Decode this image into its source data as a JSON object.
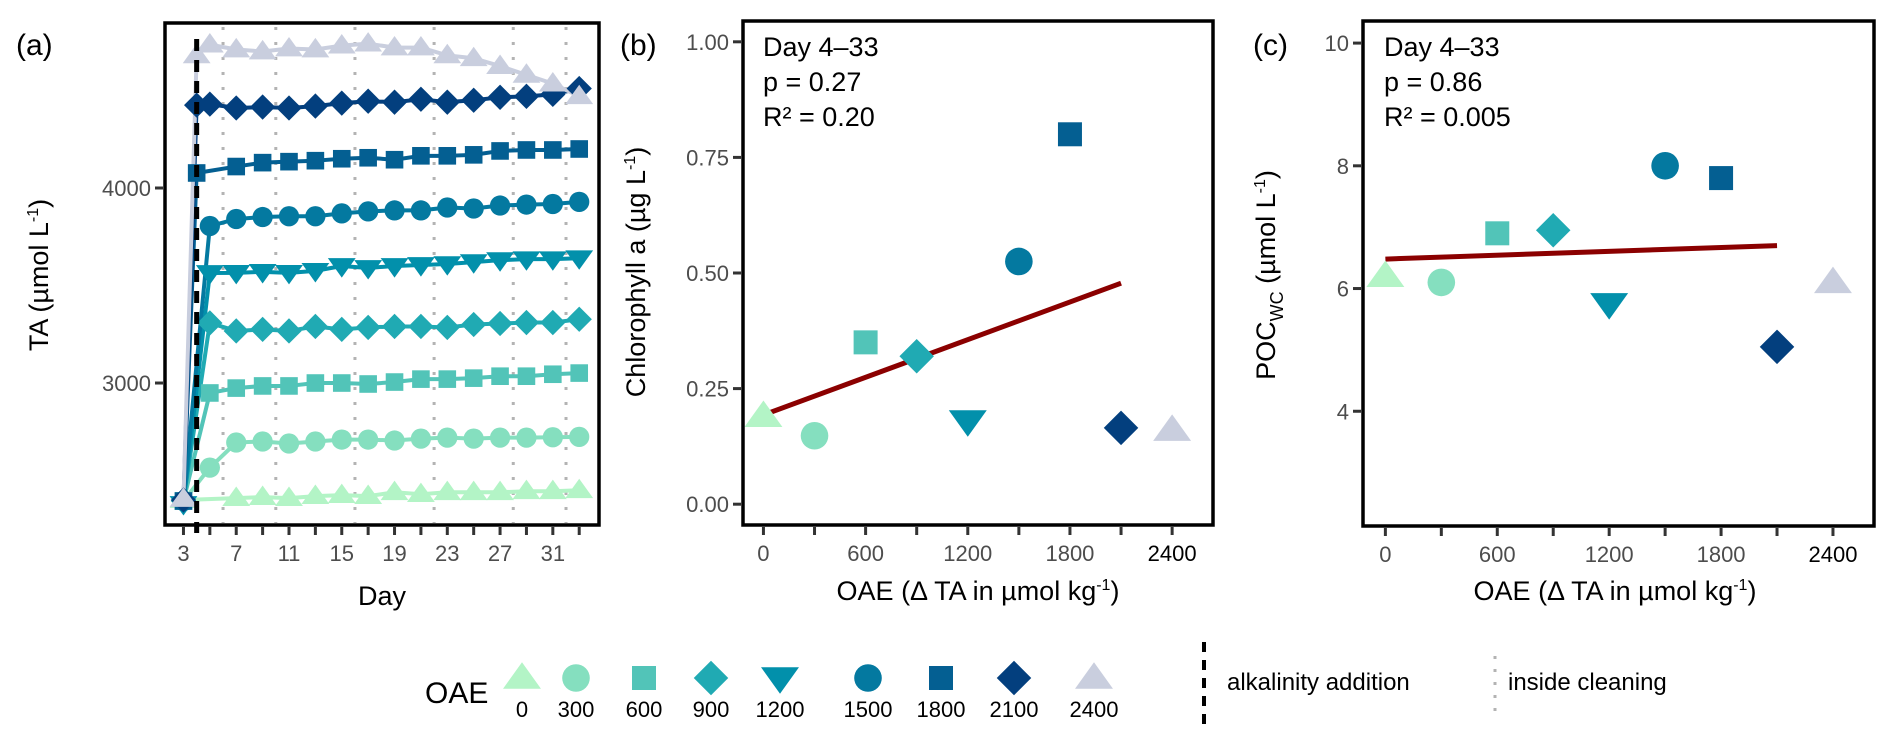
{
  "colors": {
    "0": "#b3f4c6",
    "300": "#85dfbf",
    "600": "#52c4b8",
    "900": "#20aab3",
    "1200": "#0290ab",
    "1500": "#0479a0",
    "1800": "#045f92",
    "2100": "#033f7e",
    "2400": "#c9cede",
    "regression": "#8b0000",
    "cleaning": "#b3b3b3",
    "addition": "#000000"
  },
  "shapes": {
    "0": "triangle",
    "300": "circle",
    "600": "square",
    "900": "diamond",
    "1200": "triangle-down",
    "1500": "circle",
    "1800": "square",
    "2100": "diamond",
    "2400": "triangle"
  },
  "legend": {
    "title": "OAE",
    "items": [
      "0",
      "300",
      "600",
      "900",
      "1200",
      "1500",
      "1800",
      "2100",
      "2400"
    ],
    "addition_label": "alkalinity addition",
    "cleaning_label": "inside cleaning"
  },
  "chart_data": [
    {
      "panel": "(a)",
      "type": "line",
      "title": "",
      "xlabel": "Day",
      "ylabel": "TA (µmol L-1)",
      "ylabel_main": "TA (µmol L",
      "ylabel_sup": "-1",
      "ylabel_end": ")",
      "xlim": [
        1.6,
        34.5
      ],
      "ylim": [
        2272,
        4846
      ],
      "xticks": [
        3,
        5,
        7,
        9,
        11,
        13,
        15,
        17,
        19,
        21,
        23,
        25,
        27,
        29,
        31,
        33
      ],
      "xtick_labels": [
        "3",
        "",
        "7",
        "",
        "11",
        "",
        "15",
        "",
        "19",
        "",
        "23",
        "",
        "27",
        "",
        "31",
        ""
      ],
      "yticks": [
        3000,
        4000
      ],
      "ytick_labels": [
        "3000",
        "4000"
      ],
      "alkalinity_addition_day": 4,
      "inside_cleaning_days": [
        6,
        10,
        16,
        22,
        28,
        32
      ],
      "series": [
        {
          "name": "0",
          "x": [
            3,
            7,
            9,
            11,
            13,
            15,
            17,
            19,
            21,
            23,
            25,
            27,
            29,
            31,
            33
          ],
          "values": [
            2400,
            2410,
            2415,
            2410,
            2420,
            2425,
            2420,
            2440,
            2430,
            2440,
            2440,
            2440,
            2445,
            2445,
            2450
          ]
        },
        {
          "name": "300",
          "x": [
            3,
            5,
            7,
            9,
            11,
            13,
            15,
            17,
            19,
            21,
            23,
            25,
            27,
            29,
            31,
            33
          ],
          "values": [
            2395,
            2566,
            2695,
            2700,
            2690,
            2700,
            2710,
            2710,
            2705,
            2715,
            2720,
            2715,
            2720,
            2720,
            2722,
            2724
          ]
        },
        {
          "name": "600",
          "x": [
            3,
            5,
            7,
            9,
            11,
            13,
            15,
            17,
            19,
            21,
            23,
            25,
            27,
            29,
            31,
            33
          ],
          "values": [
            2395,
            2949,
            2974,
            2985,
            2985,
            3000,
            3000,
            2995,
            3005,
            3020,
            3020,
            3025,
            3035,
            3035,
            3045,
            3051
          ]
        },
        {
          "name": "900",
          "x": [
            3,
            5,
            7,
            9,
            11,
            13,
            15,
            17,
            19,
            21,
            23,
            25,
            27,
            29,
            31,
            33
          ],
          "values": [
            2395,
            3308,
            3267,
            3275,
            3267,
            3290,
            3275,
            3285,
            3290,
            3290,
            3285,
            3300,
            3305,
            3310,
            3310,
            3327
          ]
        },
        {
          "name": "1200",
          "x": [
            3,
            5,
            7,
            9,
            11,
            13,
            15,
            17,
            19,
            21,
            23,
            25,
            27,
            29,
            31,
            33
          ],
          "values": [
            2380,
            3564,
            3565,
            3570,
            3565,
            3575,
            3600,
            3590,
            3600,
            3605,
            3610,
            3620,
            3630,
            3635,
            3635,
            3640
          ]
        },
        {
          "name": "1500",
          "x": [
            3,
            5,
            7,
            9,
            11,
            13,
            15,
            17,
            19,
            21,
            23,
            25,
            27,
            29,
            31,
            33
          ],
          "values": [
            2395,
            3805,
            3841,
            3851,
            3855,
            3855,
            3870,
            3880,
            3885,
            3885,
            3900,
            3895,
            3910,
            3915,
            3918,
            3929
          ]
        },
        {
          "name": "1800",
          "x": [
            3,
            4,
            7,
            9,
            11,
            13,
            15,
            17,
            19,
            21,
            23,
            25,
            27,
            29,
            31,
            33
          ],
          "values": [
            2395,
            4077,
            4110,
            4130,
            4135,
            4140,
            4150,
            4155,
            4145,
            4165,
            4165,
            4170,
            4190,
            4195,
            4195,
            4200
          ]
        },
        {
          "name": "2100",
          "x": [
            3,
            4,
            5,
            7,
            9,
            11,
            13,
            15,
            17,
            19,
            21,
            23,
            25,
            27,
            29,
            31,
            33
          ],
          "values": [
            2400,
            4425,
            4430,
            4410,
            4415,
            4410,
            4420,
            4435,
            4445,
            4440,
            4455,
            4440,
            4450,
            4465,
            4470,
            4480,
            4510
          ]
        },
        {
          "name": "2400",
          "x": [
            3,
            4,
            5,
            7,
            9,
            11,
            13,
            15,
            17,
            19,
            21,
            23,
            25,
            27,
            29,
            31,
            33
          ],
          "values": [
            2405,
            4680,
            4735,
            4710,
            4700,
            4715,
            4710,
            4730,
            4740,
            4720,
            4720,
            4680,
            4665,
            4625,
            4580,
            4535,
            4470
          ]
        }
      ]
    },
    {
      "panel": "(b)",
      "type": "scatter",
      "xlabel": "OAE (Δ TA in µmol kg-1)",
      "xlabel_main": "OAE (Δ TA in µmol kg",
      "xlabel_sup": "-1",
      "xlabel_end": ")",
      "ylabel": "Chlorophyll a (µg L-1)",
      "ylabel_main": "Chlorophyll a (µg L",
      "ylabel_sup": "-1",
      "ylabel_end": ")",
      "xlim": [
        -120,
        2640
      ],
      "ylim": [
        -0.045,
        1.045
      ],
      "xticks": [
        0,
        300,
        600,
        900,
        1200,
        1500,
        1800,
        2100,
        2400
      ],
      "xtick_labels": [
        "0",
        "",
        "600",
        "",
        "1200",
        "",
        "1800",
        "",
        "2400"
      ],
      "yticks": [
        0,
        0.25,
        0.5,
        0.75,
        1.0
      ],
      "ytick_labels": [
        "0.00",
        "0.25",
        "0.50",
        "0.75",
        "1.00"
      ],
      "annotation": [
        "Day 4–33",
        "p = 0.27",
        "R² = 0.20"
      ],
      "x": [
        0,
        300,
        600,
        900,
        1200,
        1500,
        1800,
        2100,
        2400
      ],
      "values": [
        0.19,
        0.148,
        0.35,
        0.32,
        0.18,
        0.525,
        0.8,
        0.165,
        0.16
      ],
      "regression": {
        "x": [
          0,
          2100
        ],
        "y": [
          0.193,
          0.478
        ]
      }
    },
    {
      "panel": "(c)",
      "type": "scatter",
      "xlabel": "OAE (Δ TA in µmol kg-1)",
      "xlabel_main": "OAE (Δ TA in µmol kg",
      "xlabel_sup": "-1",
      "xlabel_end": ")",
      "ylabel": "POCwc (µmol L-1)",
      "ylabel_main": "POC",
      "ylabel_sub": "WC",
      "ylabel_mid": " (µmol L",
      "ylabel_sup": "-1",
      "ylabel_end": ")",
      "xlim": [
        -120,
        2620
      ],
      "ylim": [
        2.13,
        10.36
      ],
      "xticks": [
        0,
        300,
        600,
        900,
        1200,
        1500,
        1800,
        2100,
        2400
      ],
      "xtick_labels": [
        "0",
        "",
        "600",
        "",
        "1200",
        "",
        "1800",
        "",
        "2400"
      ],
      "yticks": [
        4,
        6,
        8,
        10
      ],
      "ytick_labels": [
        "4",
        "6",
        "8",
        "10"
      ],
      "annotation": [
        "Day 4–33",
        "p = 0.86",
        "R² = 0.005"
      ],
      "x": [
        0,
        300,
        600,
        900,
        1200,
        1500,
        1800,
        2100,
        2400
      ],
      "values": [
        6.2,
        6.1,
        6.9,
        6.95,
        5.75,
        8.0,
        7.8,
        5.05,
        6.1
      ],
      "regression": {
        "x": [
          0,
          2100
        ],
        "y": [
          6.48,
          6.7
        ]
      }
    }
  ]
}
